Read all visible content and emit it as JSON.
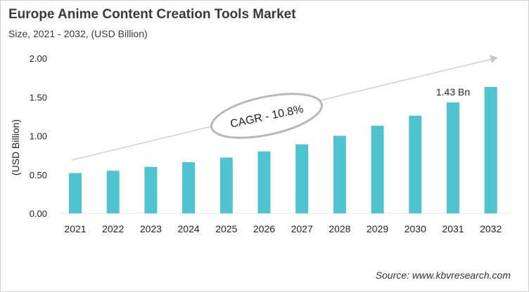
{
  "title": "Europe Anime Content Creation Tools Market",
  "subtitle": "Size, 2021 - 2032, (USD Billion)",
  "source": "Source: www.kbvresearch.com",
  "chart_data": {
    "type": "bar",
    "title": "Europe Anime Content Creation Tools Market",
    "subtitle": "Size, 2021 - 2032, (USD Billion)",
    "xlabel": "",
    "ylabel": "(USD Billion)",
    "categories": [
      "2021",
      "2022",
      "2023",
      "2024",
      "2025",
      "2026",
      "2027",
      "2028",
      "2029",
      "2030",
      "2031",
      "2032"
    ],
    "values": [
      0.52,
      0.55,
      0.6,
      0.66,
      0.72,
      0.8,
      0.89,
      1.0,
      1.13,
      1.26,
      1.43,
      1.63
    ],
    "ylim": [
      0,
      2.0
    ],
    "yticks": [
      "0.00",
      "0.50",
      "1.00",
      "1.50",
      "2.00"
    ],
    "grid": false,
    "bar_color": "#4fc3cf",
    "annotations": [
      {
        "text": "1.43 Bn",
        "category": "2031"
      },
      {
        "text": "CAGR - 10.8%",
        "type": "trend-arrow-ellipse"
      }
    ]
  }
}
